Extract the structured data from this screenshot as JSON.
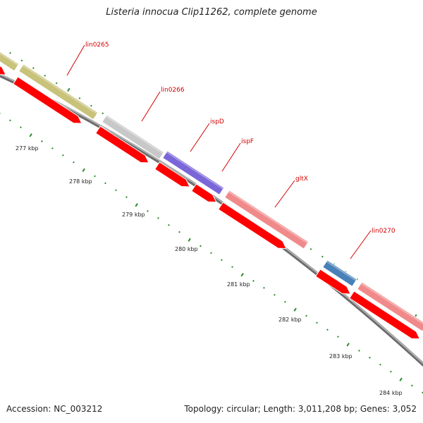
{
  "title": "Listeria innocua Clip11262, complete genome",
  "footer": {
    "accession": "Accession: NC_003212",
    "summary": "Topology: circular; Length: 3,011,208 bp; Genes: 3,052"
  },
  "ruler": [
    {
      "label": "277 kbp"
    },
    {
      "label": "278 kbp"
    },
    {
      "label": "279 kbp"
    },
    {
      "label": "280 kbp"
    },
    {
      "label": "281 kbp"
    },
    {
      "label": "282 kbp"
    },
    {
      "label": "283 kbp"
    },
    {
      "label": "284 kbp"
    }
  ],
  "genes": [
    {
      "label": "lin0265",
      "color": "#c8c27a"
    },
    {
      "label": "lin0266",
      "color": "#c8c8c8"
    },
    {
      "label": "ispD",
      "color": "#7a66d8"
    },
    {
      "label": "ispF",
      "color": "#f08a8a"
    },
    {
      "label": "gltX",
      "color": "#f08a8a"
    },
    {
      "label": "lin0270",
      "color": "#4a80b8"
    }
  ],
  "colors": {
    "cds_arrow": "#ff0000",
    "backbone": "#888888",
    "tick": "#2a8a2a"
  }
}
